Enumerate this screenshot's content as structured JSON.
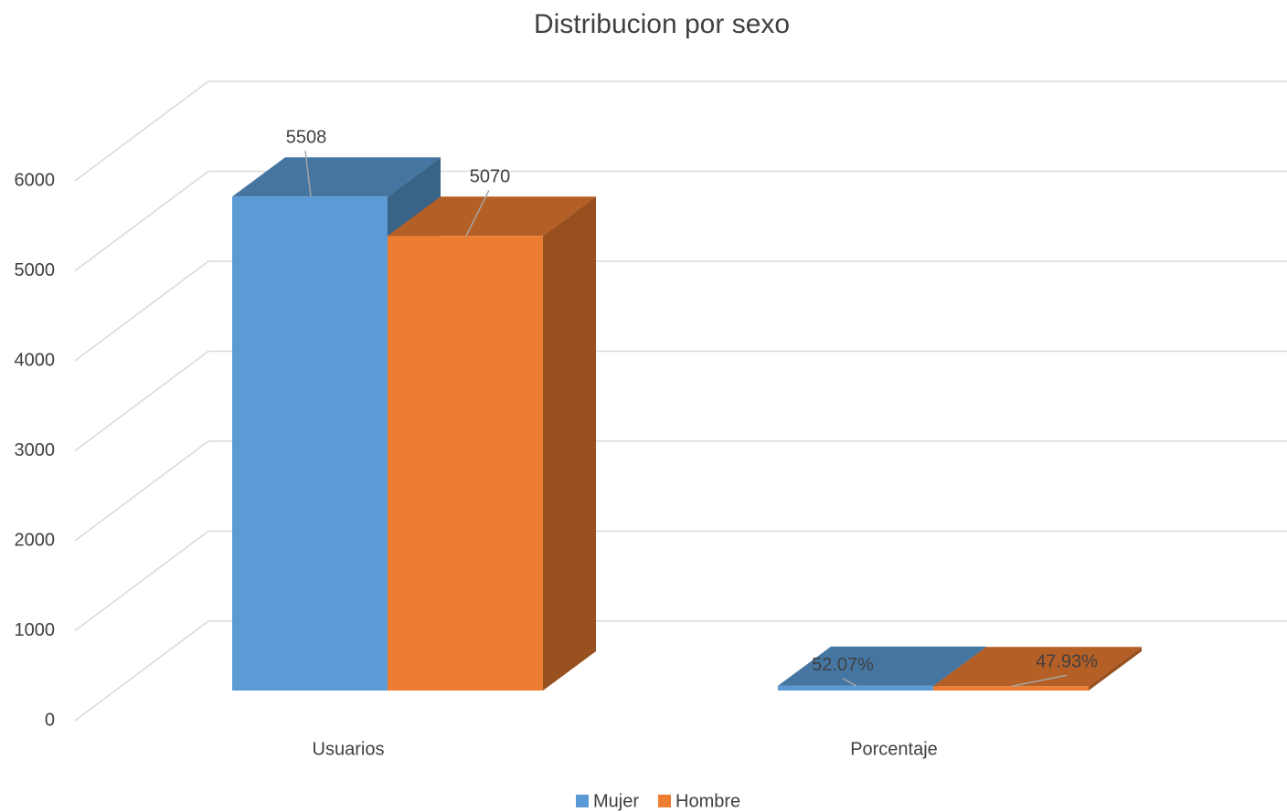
{
  "chart_data": {
    "type": "bar3d",
    "title": "Distribucion por sexo",
    "categories": [
      "Usuarios",
      "Porcentaje"
    ],
    "series": [
      {
        "name": "Mujer",
        "color": "#5b9bd5",
        "values": [
          5508,
          52.07
        ],
        "value_labels": [
          "5508",
          "52.07%"
        ]
      },
      {
        "name": "Hombre",
        "color": "#ed7d31",
        "values": [
          5070,
          47.93
        ],
        "value_labels": [
          "5070",
          "47.93%"
        ]
      }
    ],
    "ylim": [
      0,
      6000
    ],
    "yticks": [
      0,
      1000,
      2000,
      3000,
      4000,
      5000,
      6000
    ],
    "grid": true,
    "legend": "bottom"
  }
}
